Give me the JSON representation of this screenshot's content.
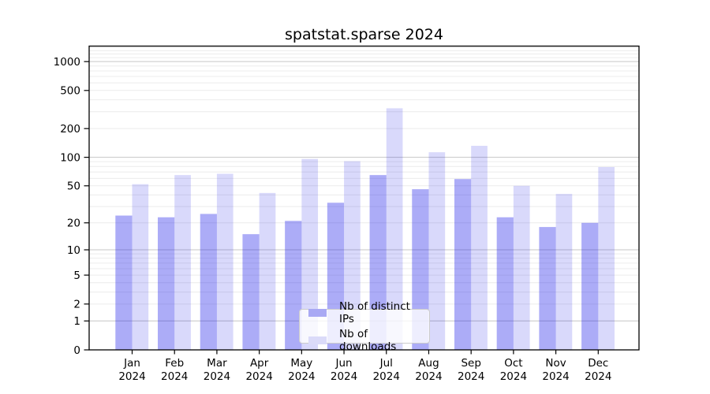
{
  "chart_data": {
    "type": "bar",
    "title": "spatstat.sparse 2024",
    "categories": [
      "Jan 2024",
      "Feb 2024",
      "Mar 2024",
      "Apr 2024",
      "May 2024",
      "Jun 2024",
      "Jul 2024",
      "Aug 2024",
      "Sep 2024",
      "Oct 2024",
      "Nov 2024",
      "Dec 2024"
    ],
    "series": [
      {
        "name": "Nb of distinct IPs",
        "values": [
          24,
          23,
          25,
          15,
          21,
          33,
          65,
          46,
          59,
          23,
          18,
          20
        ],
        "color": "rgba(16,16,232,0.35)",
        "swatch_color": "#a9a9f4"
      },
      {
        "name": "Nb of downloads",
        "values": [
          52,
          65,
          67,
          42,
          96,
          91,
          326,
          113,
          132,
          50,
          41,
          79
        ],
        "color": "rgba(16,16,232,0.16)",
        "swatch_color": "#dbdbf9"
      }
    ],
    "xlabel": "",
    "ylabel": "",
    "yscale": "log1p",
    "yticks": [
      0,
      1,
      2,
      5,
      10,
      20,
      50,
      100,
      200,
      500,
      1000
    ],
    "ylim": [
      0,
      1450
    ],
    "grid": {
      "major_lines": [
        1,
        10,
        100,
        1000
      ],
      "minor_lines": "log decade subdivisions",
      "major_color": "#c6c6c6",
      "minor_color": "#ececec"
    },
    "legend_position": "bottom-center",
    "axis_color": "#000000"
  }
}
